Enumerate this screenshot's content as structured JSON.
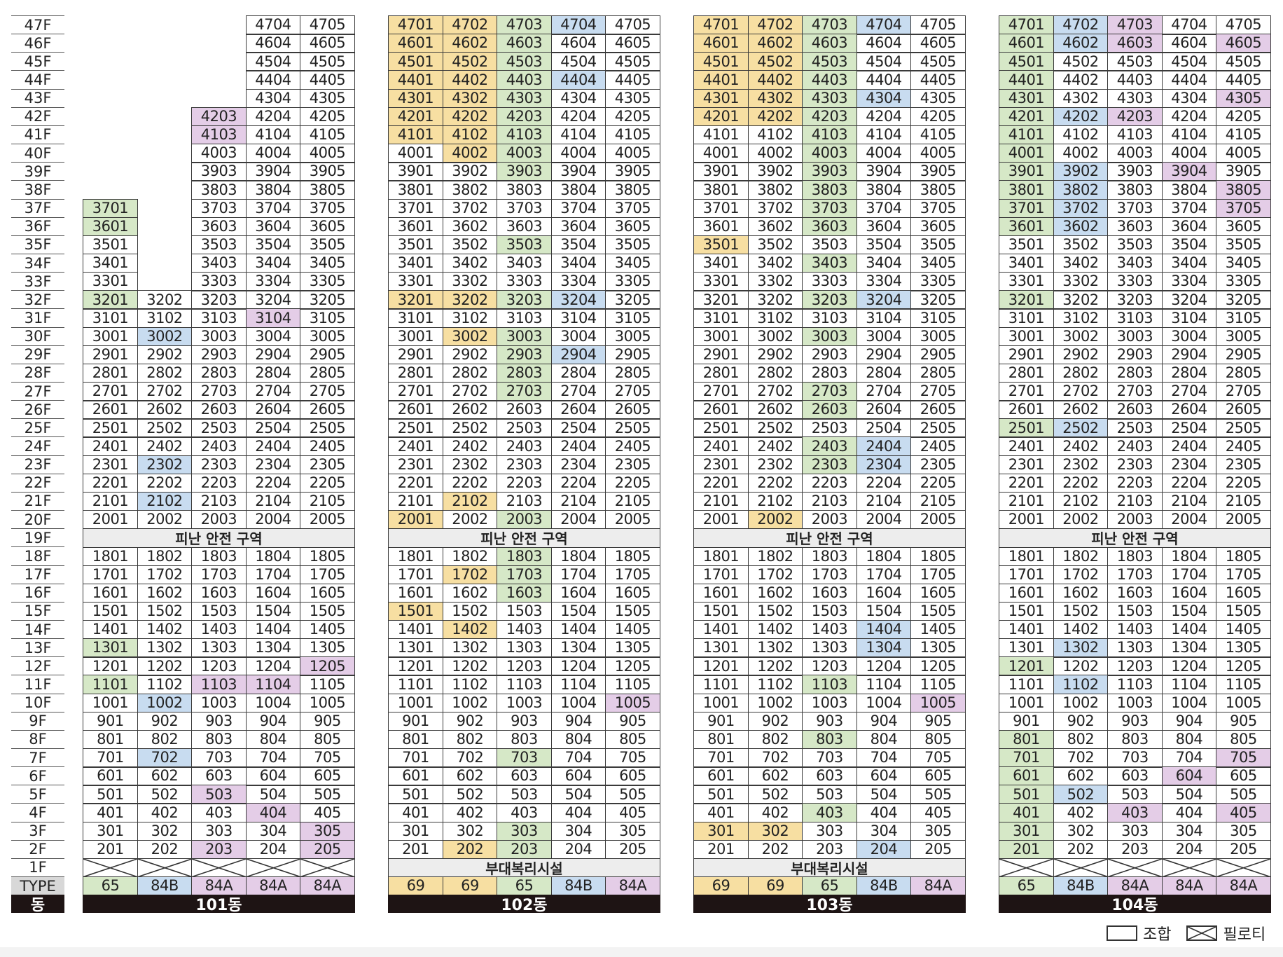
{
  "floor_labels": [
    "47F",
    "46F",
    "45F",
    "44F",
    "43F",
    "42F",
    "41F",
    "40F",
    "39F",
    "38F",
    "37F",
    "36F",
    "35F",
    "34F",
    "33F",
    "32F",
    "31F",
    "30F",
    "29F",
    "28F",
    "27F",
    "26F",
    "25F",
    "24F",
    "23F",
    "22F",
    "21F",
    "20F",
    "19F",
    "18F",
    "17F",
    "16F",
    "15F",
    "14F",
    "13F",
    "12F",
    "11F",
    "10F",
    "9F",
    "8F",
    "7F",
    "6F",
    "5F",
    "4F",
    "3F",
    "2F",
    "1F"
  ],
  "type_label": "TYPE",
  "dong_label": "동",
  "colors": {
    "yellow": "#f7dfa2",
    "green": "#d6e8c7",
    "blue": "#c8dcf0",
    "pink": "#e4cde7",
    "band": "#ededed",
    "bar": "#1e1414"
  },
  "buildings": [
    {
      "name": "101동",
      "max_floors": [
        37,
        32,
        42,
        47,
        47
      ],
      "types": [
        "65",
        "84B",
        "84A",
        "84A",
        "84A"
      ],
      "type_colors": [
        "green",
        "blue",
        "pink",
        "pink",
        "pink"
      ],
      "band19": "피난 안전 구역",
      "band1": "",
      "pilotis_1f": true,
      "highlights": {
        "green": [
          "3701",
          "3601",
          "3201",
          "1301",
          "1101"
        ],
        "blue": [
          "3002",
          "2302",
          "2102",
          "1002",
          "702"
        ],
        "pink": [
          "4203",
          "4103",
          "3104",
          "1205",
          "1103",
          "1104",
          "503",
          "404",
          "305",
          "203",
          "205"
        ],
        "yellow": []
      }
    },
    {
      "name": "102동",
      "max_floors": [
        47,
        47,
        47,
        47,
        47
      ],
      "types": [
        "69",
        "69",
        "65",
        "84B",
        "84A"
      ],
      "type_colors": [
        "yellow",
        "yellow",
        "green",
        "blue",
        "pink"
      ],
      "band19": "피난 안전 구역",
      "band1": "부대복리시설",
      "pilotis_1f": false,
      "highlights": {
        "yellow": [
          "4701",
          "4702",
          "4601",
          "4602",
          "4501",
          "4502",
          "4401",
          "4402",
          "4301",
          "4302",
          "4201",
          "4202",
          "4101",
          "4102",
          "4002",
          "3201",
          "3202",
          "3002",
          "2102",
          "2001",
          "1702",
          "1501",
          "1402",
          "202"
        ],
        "green": [
          "4703",
          "4603",
          "4503",
          "4403",
          "4303",
          "4203",
          "4103",
          "4003",
          "3903",
          "3503",
          "3203",
          "3003",
          "2903",
          "2803",
          "2703",
          "2003",
          "1803",
          "1703",
          "1603",
          "703",
          "303",
          "203"
        ],
        "blue": [
          "4704",
          "4404",
          "3204",
          "2904"
        ],
        "pink": [
          "1005"
        ]
      }
    },
    {
      "name": "103동",
      "max_floors": [
        47,
        47,
        47,
        47,
        47
      ],
      "types": [
        "69",
        "69",
        "65",
        "84B",
        "84A"
      ],
      "type_colors": [
        "yellow",
        "yellow",
        "green",
        "blue",
        "pink"
      ],
      "band19": "피난 안전 구역",
      "band1": "부대복리시설",
      "pilotis_1f": false,
      "highlights": {
        "yellow": [
          "4701",
          "4702",
          "4601",
          "4602",
          "4501",
          "4502",
          "4401",
          "4402",
          "4301",
          "4302",
          "4201",
          "4202",
          "3501",
          "2002",
          "301",
          "302"
        ],
        "green": [
          "4703",
          "4603",
          "4503",
          "4403",
          "4303",
          "4203",
          "4103",
          "4003",
          "3903",
          "3803",
          "3703",
          "3603",
          "3403",
          "3203",
          "3003",
          "2703",
          "2603",
          "2403",
          "2303",
          "1103",
          "803",
          "403"
        ],
        "blue": [
          "4704",
          "4304",
          "3204",
          "2404",
          "2304",
          "1404",
          "1304",
          "204"
        ],
        "pink": [
          "1005"
        ]
      }
    },
    {
      "name": "104동",
      "max_floors": [
        47,
        47,
        47,
        47,
        47
      ],
      "types": [
        "65",
        "84B",
        "84A",
        "84A",
        "84A"
      ],
      "type_colors": [
        "green",
        "blue",
        "pink",
        "pink",
        "pink"
      ],
      "band19": "피난 안전 구역",
      "band1": "",
      "pilotis_1f": true,
      "highlights": {
        "green": [
          "4701",
          "4601",
          "4501",
          "4401",
          "4301",
          "4201",
          "4101",
          "4001",
          "3901",
          "3801",
          "3701",
          "3601",
          "3201",
          "2501",
          "1201",
          "801",
          "701",
          "601",
          "501",
          "401",
          "301",
          "201"
        ],
        "blue": [
          "4702",
          "4602",
          "4202",
          "3902",
          "3802",
          "3702",
          "3602",
          "2502",
          "1302",
          "1102",
          "502"
        ],
        "pink": [
          "4703",
          "4603",
          "4605",
          "4305",
          "4203",
          "3904",
          "3805",
          "3705",
          "705",
          "604",
          "403",
          "405"
        ],
        "yellow": []
      }
    }
  ],
  "legend": {
    "union": "조합",
    "pilotis": "필로티"
  }
}
